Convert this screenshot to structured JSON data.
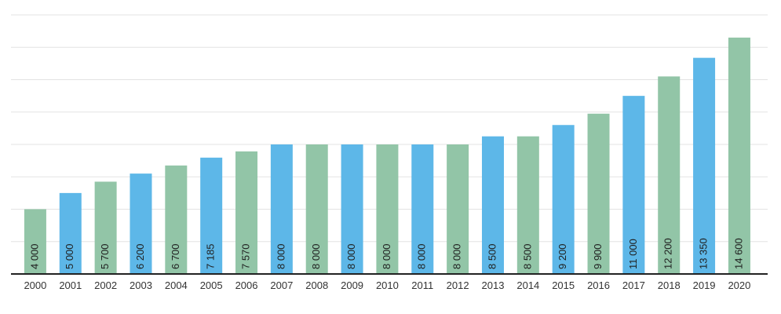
{
  "chart_data": {
    "type": "bar",
    "categories": [
      "2000",
      "2001",
      "2002",
      "2003",
      "2004",
      "2005",
      "2006",
      "2007",
      "2008",
      "2009",
      "2010",
      "2011",
      "2012",
      "2013",
      "2014",
      "2015",
      "2016",
      "2017",
      "2018",
      "2019",
      "2020"
    ],
    "values": [
      4000,
      5000,
      5700,
      6200,
      6700,
      7185,
      7570,
      8000,
      8000,
      8000,
      8000,
      8000,
      8000,
      8500,
      8500,
      9200,
      9900,
      11000,
      12200,
      13350,
      14600
    ],
    "value_labels": [
      "4 000",
      "5 000",
      "5 700",
      "6 200",
      "6 700",
      "7 185",
      "7 570",
      "8 000",
      "8 000",
      "8 000",
      "8 000",
      "8 000",
      "8 000",
      "8 500",
      "8 500",
      "9 200",
      "9 900",
      "11 000",
      "12 200",
      "13 350",
      "14 600"
    ],
    "colors": [
      "#92c5a7",
      "#5db7e8",
      "#92c5a7",
      "#5db7e8",
      "#92c5a7",
      "#5db7e8",
      "#92c5a7",
      "#5db7e8",
      "#92c5a7",
      "#5db7e8",
      "#92c5a7",
      "#5db7e8",
      "#92c5a7",
      "#5db7e8",
      "#92c5a7",
      "#5db7e8",
      "#92c5a7",
      "#5db7e8",
      "#92c5a7",
      "#5db7e8",
      "#92c5a7"
    ],
    "title": "",
    "xlabel": "",
    "ylabel": "",
    "ylim": [
      0,
      16000
    ],
    "ytick_step": 2000,
    "grid": true,
    "legend": "none"
  }
}
